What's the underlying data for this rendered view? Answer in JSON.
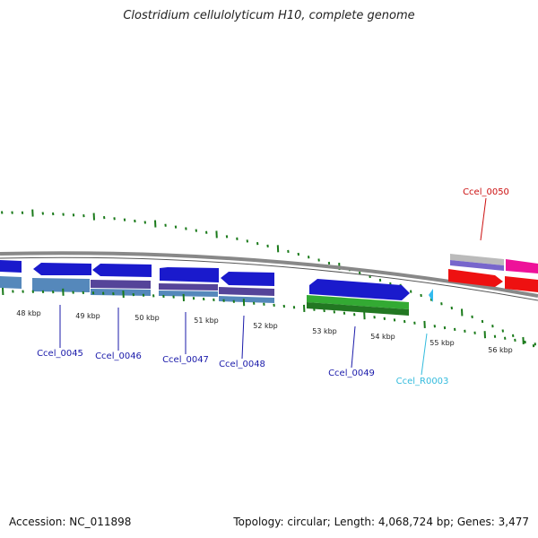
{
  "title": "Clostridium cellulolyticum H10, complete genome",
  "footer": {
    "accession": "Accession: NC_011898",
    "summary": "Topology: circular; Length: 4,068,724 bp; Genes: 3,477"
  },
  "colors": {
    "backbone": "#888888",
    "tick": "#1a7a1a",
    "cds_blue": "#1a1acc",
    "cds_steel": "#5588bb",
    "cds_purple": "#554499",
    "cds_green": "#33aa33",
    "cds_red": "#ee1111",
    "cds_magenta": "#ee1199",
    "rna": "#33bbee",
    "label_navy": "#1a1aaa",
    "label_red": "#cc1111",
    "label_cyan": "#33bbdd"
  },
  "scale": {
    "tick_labels": [
      "48 kbp",
      "49 kbp",
      "50 kbp",
      "51 kbp",
      "52 kbp",
      "53 kbp",
      "54 kbp",
      "55 kbp",
      "56 kbp"
    ]
  },
  "genes": [
    {
      "locus": "Ccel_0045",
      "color": "navy"
    },
    {
      "locus": "Ccel_0046",
      "color": "navy"
    },
    {
      "locus": "Ccel_0047",
      "color": "navy"
    },
    {
      "locus": "Ccel_0048",
      "color": "navy"
    },
    {
      "locus": "Ccel_0049",
      "color": "navy"
    },
    {
      "locus": "Ccel_R0003",
      "color": "cyan"
    },
    {
      "locus": "Ccel_0050",
      "color": "red"
    }
  ]
}
